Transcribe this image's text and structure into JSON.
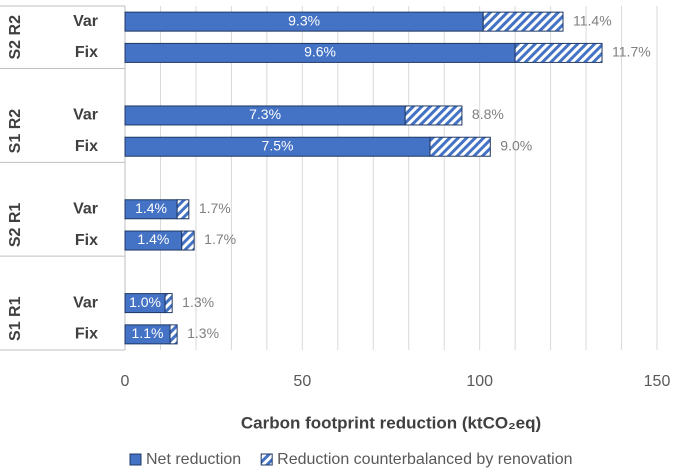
{
  "chart_data": {
    "type": "stacked_barh",
    "xlabel": "Carbon footprint reduction (ktCO₂eq)",
    "groups": [
      "S2 R2",
      "S1 R2",
      "S2 R1",
      "S1 R1"
    ],
    "categories": [
      "Var",
      "Fix",
      null,
      "Var",
      "Fix",
      null,
      "Var",
      "Fix",
      null,
      "Var",
      "Fix"
    ],
    "series": [
      {
        "name": "Net reduction",
        "color": "#4472c4",
        "pattern": "solid",
        "values": [
          101,
          110,
          null,
          79,
          86,
          null,
          14.7,
          16,
          null,
          11.3,
          12.7
        ],
        "data_labels": [
          "9.3%",
          "9.6%",
          null,
          "7.3%",
          "7.5%",
          null,
          "1.4%",
          "1.4%",
          null,
          "1.0%",
          "1.1%"
        ]
      },
      {
        "name": "Reduction counterbalanced by renovation",
        "color": "#4472c4",
        "pattern": "hatch",
        "values": [
          22.5,
          24.5,
          null,
          16,
          17,
          null,
          3.3,
          3.5,
          null,
          2,
          2
        ],
        "data_labels": [
          "11.4%",
          "11.7%",
          null,
          "8.8%",
          "9.0%",
          null,
          "1.7%",
          "1.7%",
          null,
          "1.3%",
          "1.3%"
        ]
      }
    ],
    "xlim": [
      0,
      150
    ],
    "xticks": [
      0,
      50,
      100,
      150
    ],
    "xgrid": [
      10,
      20,
      30,
      40,
      50,
      60,
      70,
      80,
      90,
      100,
      110,
      120,
      130,
      140,
      150
    ],
    "legend": "bottom"
  }
}
